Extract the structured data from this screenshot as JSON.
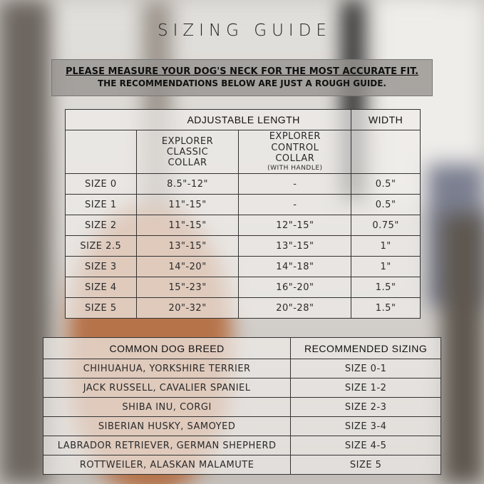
{
  "title": "SIZING GUIDE",
  "notice": {
    "line1": "PLEASE MEASURE YOUR DOG'S NECK FOR THE MOST ACCURATE FIT.",
    "line2": "THE RECOMMENDATIONS BELOW ARE JUST A ROUGH GUIDE."
  },
  "size_table": {
    "group_headers": {
      "length": "ADJUSTABLE LENGTH",
      "width": "WIDTH"
    },
    "columns": {
      "classic": "EXPLORER CLASSIC COLLAR",
      "control": "EXPLORER CONTROL COLLAR",
      "control_note": "(WITH HANDLE)"
    },
    "rows": [
      {
        "size": "SIZE 0",
        "classic": "8.5\"-12\"",
        "control": "-",
        "width": "0.5\""
      },
      {
        "size": "SIZE 1",
        "classic": "11\"-15\"",
        "control": "-",
        "width": "0.5\""
      },
      {
        "size": "SIZE 2",
        "classic": "11\"-15\"",
        "control": "12\"-15\"",
        "width": "0.75\""
      },
      {
        "size": "SIZE 2.5",
        "classic": "13\"-15\"",
        "control": "13\"-15\"",
        "width": "1\""
      },
      {
        "size": "SIZE 3",
        "classic": "14\"-20\"",
        "control": "14\"-18\"",
        "width": "1\""
      },
      {
        "size": "SIZE 4",
        "classic": "15\"-23\"",
        "control": "16\"-20\"",
        "width": "1.5\""
      },
      {
        "size": "SIZE 5",
        "classic": "20\"-32\"",
        "control": "20\"-28\"",
        "width": "1.5\""
      }
    ]
  },
  "breed_table": {
    "headers": {
      "breed": "COMMON DOG BREED",
      "sizing": "RECOMMENDED SIZING"
    },
    "rows": [
      {
        "breed": "CHIHUAHUA, YORKSHIRE TERRIER",
        "sizing": "SIZE 0-1"
      },
      {
        "breed": "JACK RUSSELL, CAVALIER SPANIEL",
        "sizing": "SIZE 1-2"
      },
      {
        "breed": "SHIBA INU, CORGI",
        "sizing": "SIZE 2-3"
      },
      {
        "breed": "SIBERIAN HUSKY, SAMOYED",
        "sizing": "SIZE 3-4"
      },
      {
        "breed": "LABRADOR RETRIEVER, GERMAN SHEPHERD",
        "sizing": "SIZE 4-5"
      },
      {
        "breed": "ROTTWEILER, ALASKAN MALAMUTE",
        "sizing": "SIZE 5"
      }
    ]
  }
}
